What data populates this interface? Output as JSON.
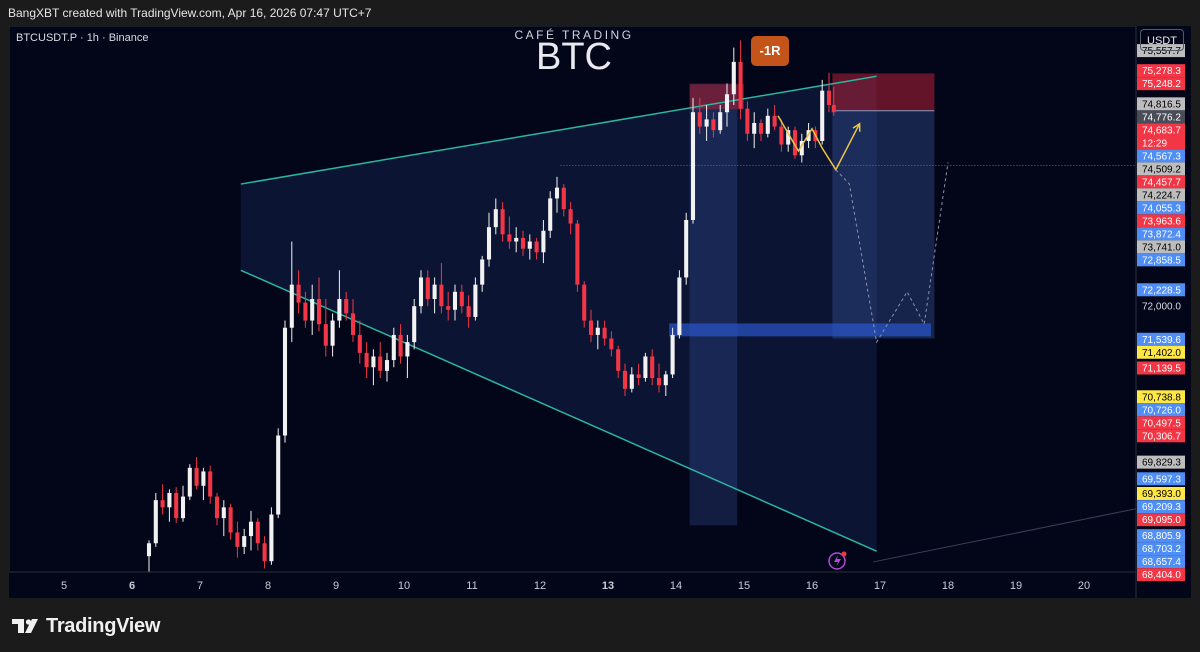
{
  "header": {
    "credit": "BangXBT created with TradingView.com, Apr 16, 2026 07:47 UTC+7"
  },
  "chart": {
    "symbol_line": "BTCUSDT.P · 1h · Binance",
    "brand_small": "CAFÉ TRADING",
    "brand_big": "BTC",
    "badge": "-1R",
    "currency": "USDT"
  },
  "footer": {
    "logo_text": "TradingView"
  },
  "colors": {
    "background": "#030619",
    "up_candle": "#f2f2f2",
    "down_candle": "#f23645",
    "channel": "#2bb5a0",
    "projection": "#e8c547",
    "position_zone": "#3b5ba8",
    "stop_zone": "#b32134",
    "level_red": "#f23645",
    "level_blue": "#4f8ef7",
    "level_yellow": "#ffe745",
    "level_gray": "#bdbdbd"
  },
  "chart_data": {
    "type": "candlestick",
    "symbol": "BTCUSDT.P",
    "interval": "1h",
    "exchange": "Binance",
    "x_ticks": [
      "5",
      "6",
      "7",
      "8",
      "9",
      "10",
      "11",
      "12",
      "13",
      "14",
      "15",
      "16",
      "17",
      "18",
      "19",
      "20"
    ],
    "bold_x_ticks": [
      "6",
      "13"
    ],
    "x_range": [
      4.2,
      20.6
    ],
    "y_range": [
      68300,
      75900
    ],
    "price_axis_labels": [
      {
        "text": "75,557.7",
        "color": "gray"
      },
      {
        "text": "75,278.3",
        "color": "red"
      },
      {
        "text": "75,248.2",
        "color": "red"
      },
      {
        "text": "74,816.5",
        "color": "gray"
      },
      {
        "text": "74,776.2",
        "color": "dark"
      },
      {
        "text": "74,683.7",
        "color": "red",
        "sub": "12:29"
      },
      {
        "text": "74,567.3",
        "color": "blue"
      },
      {
        "text": "74,509.2",
        "color": "gray"
      },
      {
        "text": "74,457.7",
        "color": "red"
      },
      {
        "text": "74,224.7",
        "color": "gray"
      },
      {
        "text": "74,055.3",
        "color": "blue"
      },
      {
        "text": "73,963.6",
        "color": "red"
      },
      {
        "text": "73,872.4",
        "color": "blue"
      },
      {
        "text": "73,741.0",
        "color": "gray"
      },
      {
        "text": "72,858.5",
        "color": "blue"
      },
      {
        "text": "72,228.5",
        "color": "blue"
      },
      {
        "text": "72,000.0",
        "color": "none"
      },
      {
        "text": "71,539.6",
        "color": "blue"
      },
      {
        "text": "71,402.0",
        "color": "yellow"
      },
      {
        "text": "71,139.5",
        "color": "red"
      },
      {
        "text": "70,738.8",
        "color": "yellow"
      },
      {
        "text": "70,726.0",
        "color": "blue"
      },
      {
        "text": "70,497.5",
        "color": "red"
      },
      {
        "text": "70,306.7",
        "color": "red"
      },
      {
        "text": "69,829.3",
        "color": "gray"
      },
      {
        "text": "69,597.3",
        "color": "blue"
      },
      {
        "text": "69,393.0",
        "color": "yellow"
      },
      {
        "text": "69,209.3",
        "color": "blue"
      },
      {
        "text": "69,095.0",
        "color": "red"
      },
      {
        "text": "68,805.9",
        "color": "blue"
      },
      {
        "text": "68,703.2",
        "color": "blue"
      },
      {
        "text": "68,657.4",
        "color": "blue"
      },
      {
        "text": "68,404.0",
        "color": "red"
      }
    ],
    "channel": {
      "upper": [
        [
          7.6,
          73700
        ],
        [
          16.95,
          75200
        ]
      ],
      "lower": [
        [
          7.6,
          72500
        ],
        [
          16.95,
          68590
        ]
      ]
    },
    "channel_fill_start_x": 7.6,
    "short_position": {
      "x": [
        16.3,
        17.8
      ],
      "entry": 74720,
      "stop": 75240,
      "target": 71550
    },
    "demand_zone": {
      "x": [
        13.9,
        17.75
      ],
      "top": 71760,
      "bottom": 71580
    },
    "supply_box": {
      "x": [
        14.2,
        15.0
      ],
      "top": 75090,
      "bottom": 74740
    },
    "vertical_band": {
      "x": [
        14.2,
        14.9
      ],
      "top": 75100,
      "bottom": 68950
    },
    "dotted_level": {
      "x_start": 12.3,
      "price": 73960
    },
    "projection_solid": [
      [
        15.5,
        74650
      ],
      [
        15.8,
        74160
      ],
      [
        16.0,
        74470
      ],
      [
        16.15,
        74200
      ],
      [
        16.35,
        73900
      ],
      [
        16.7,
        74540
      ]
    ],
    "projection_dashed": [
      [
        16.35,
        73900
      ],
      [
        16.55,
        73700
      ],
      [
        16.95,
        71500
      ],
      [
        17.4,
        72200
      ],
      [
        17.65,
        71750
      ],
      [
        18.0,
        74000
      ]
    ],
    "candles": [
      {
        "x": 6.25,
        "o": 68520,
        "h": 68740,
        "l": 68300,
        "c": 68700
      },
      {
        "x": 6.35,
        "o": 68700,
        "h": 69400,
        "l": 68650,
        "c": 69300
      },
      {
        "x": 6.45,
        "o": 69300,
        "h": 69520,
        "l": 69100,
        "c": 69200
      },
      {
        "x": 6.55,
        "o": 69200,
        "h": 69450,
        "l": 69000,
        "c": 69400
      },
      {
        "x": 6.65,
        "o": 69400,
        "h": 69480,
        "l": 68980,
        "c": 69050
      },
      {
        "x": 6.75,
        "o": 69050,
        "h": 69500,
        "l": 69000,
        "c": 69350
      },
      {
        "x": 6.85,
        "o": 69350,
        "h": 69800,
        "l": 69300,
        "c": 69750
      },
      {
        "x": 6.95,
        "o": 69750,
        "h": 69900,
        "l": 69450,
        "c": 69500
      },
      {
        "x": 7.05,
        "o": 69500,
        "h": 69750,
        "l": 69300,
        "c": 69700
      },
      {
        "x": 7.15,
        "o": 69700,
        "h": 69780,
        "l": 69250,
        "c": 69350
      },
      {
        "x": 7.25,
        "o": 69350,
        "h": 69400,
        "l": 68950,
        "c": 69050
      },
      {
        "x": 7.35,
        "o": 69050,
        "h": 69300,
        "l": 68800,
        "c": 69200
      },
      {
        "x": 7.45,
        "o": 69200,
        "h": 69250,
        "l": 68750,
        "c": 68850
      },
      {
        "x": 7.55,
        "o": 68850,
        "h": 69000,
        "l": 68500,
        "c": 68650
      },
      {
        "x": 7.65,
        "o": 68650,
        "h": 68900,
        "l": 68550,
        "c": 68800
      },
      {
        "x": 7.75,
        "o": 68800,
        "h": 69150,
        "l": 68600,
        "c": 69000
      },
      {
        "x": 7.85,
        "o": 69000,
        "h": 69050,
        "l": 68600,
        "c": 68700
      },
      {
        "x": 7.95,
        "o": 68700,
        "h": 68800,
        "l": 68350,
        "c": 68450
      },
      {
        "x": 8.05,
        "o": 68450,
        "h": 69200,
        "l": 68400,
        "c": 69100
      },
      {
        "x": 8.15,
        "o": 69100,
        "h": 70300,
        "l": 69050,
        "c": 70200
      },
      {
        "x": 8.25,
        "o": 70200,
        "h": 71800,
        "l": 70100,
        "c": 71700
      },
      {
        "x": 8.35,
        "o": 71700,
        "h": 72900,
        "l": 71500,
        "c": 72300
      },
      {
        "x": 8.45,
        "o": 72300,
        "h": 72500,
        "l": 71900,
        "c": 72050
      },
      {
        "x": 8.55,
        "o": 72050,
        "h": 72200,
        "l": 71700,
        "c": 71800
      },
      {
        "x": 8.65,
        "o": 71800,
        "h": 72300,
        "l": 71600,
        "c": 72100
      },
      {
        "x": 8.75,
        "o": 72100,
        "h": 72400,
        "l": 71650,
        "c": 71750
      },
      {
        "x": 8.85,
        "o": 71750,
        "h": 72100,
        "l": 71300,
        "c": 71450
      },
      {
        "x": 8.95,
        "o": 71450,
        "h": 71900,
        "l": 71300,
        "c": 71800
      },
      {
        "x": 9.05,
        "o": 71800,
        "h": 72500,
        "l": 71700,
        "c": 72100
      },
      {
        "x": 9.15,
        "o": 72100,
        "h": 72200,
        "l": 71800,
        "c": 71900
      },
      {
        "x": 9.25,
        "o": 71900,
        "h": 72100,
        "l": 71500,
        "c": 71600
      },
      {
        "x": 9.35,
        "o": 71600,
        "h": 71800,
        "l": 71200,
        "c": 71350
      },
      {
        "x": 9.45,
        "o": 71350,
        "h": 71500,
        "l": 71000,
        "c": 71150
      },
      {
        "x": 9.55,
        "o": 71150,
        "h": 71400,
        "l": 70900,
        "c": 71300
      },
      {
        "x": 9.65,
        "o": 71300,
        "h": 71500,
        "l": 71000,
        "c": 71100
      },
      {
        "x": 9.75,
        "o": 71100,
        "h": 71350,
        "l": 70950,
        "c": 71250
      },
      {
        "x": 9.85,
        "o": 71250,
        "h": 71700,
        "l": 71150,
        "c": 71600
      },
      {
        "x": 9.95,
        "o": 71600,
        "h": 71750,
        "l": 71200,
        "c": 71300
      },
      {
        "x": 10.05,
        "o": 71300,
        "h": 71600,
        "l": 71000,
        "c": 71500
      },
      {
        "x": 10.15,
        "o": 71500,
        "h": 72100,
        "l": 71400,
        "c": 72000
      },
      {
        "x": 10.25,
        "o": 72000,
        "h": 72500,
        "l": 71900,
        "c": 72400
      },
      {
        "x": 10.35,
        "o": 72400,
        "h": 72500,
        "l": 72000,
        "c": 72100
      },
      {
        "x": 10.45,
        "o": 72100,
        "h": 72400,
        "l": 71900,
        "c": 72300
      },
      {
        "x": 10.55,
        "o": 72300,
        "h": 72600,
        "l": 71900,
        "c": 72000
      },
      {
        "x": 10.65,
        "o": 72000,
        "h": 72200,
        "l": 71800,
        "c": 71950
      },
      {
        "x": 10.75,
        "o": 71950,
        "h": 72300,
        "l": 71800,
        "c": 72200
      },
      {
        "x": 10.85,
        "o": 72200,
        "h": 72300,
        "l": 71900,
        "c": 72000
      },
      {
        "x": 10.95,
        "o": 72000,
        "h": 72150,
        "l": 71700,
        "c": 71850
      },
      {
        "x": 11.05,
        "o": 71850,
        "h": 72400,
        "l": 71800,
        "c": 72300
      },
      {
        "x": 11.15,
        "o": 72300,
        "h": 72700,
        "l": 72200,
        "c": 72650
      },
      {
        "x": 11.25,
        "o": 72650,
        "h": 73300,
        "l": 72550,
        "c": 73100
      },
      {
        "x": 11.35,
        "o": 73100,
        "h": 73500,
        "l": 73000,
        "c": 73350
      },
      {
        "x": 11.45,
        "o": 73350,
        "h": 73450,
        "l": 72900,
        "c": 73000
      },
      {
        "x": 11.55,
        "o": 73000,
        "h": 73250,
        "l": 72800,
        "c": 72900
      },
      {
        "x": 11.65,
        "o": 72900,
        "h": 73100,
        "l": 72750,
        "c": 72950
      },
      {
        "x": 11.75,
        "o": 72950,
        "h": 73050,
        "l": 72700,
        "c": 72800
      },
      {
        "x": 11.85,
        "o": 72800,
        "h": 73000,
        "l": 72650,
        "c": 72900
      },
      {
        "x": 11.95,
        "o": 72900,
        "h": 72950,
        "l": 72650,
        "c": 72750
      },
      {
        "x": 12.05,
        "o": 72750,
        "h": 73200,
        "l": 72600,
        "c": 73050
      },
      {
        "x": 12.15,
        "o": 73050,
        "h": 73600,
        "l": 72950,
        "c": 73500
      },
      {
        "x": 12.25,
        "o": 73500,
        "h": 73800,
        "l": 73300,
        "c": 73650
      },
      {
        "x": 12.35,
        "o": 73650,
        "h": 73700,
        "l": 73250,
        "c": 73350
      },
      {
        "x": 12.45,
        "o": 73350,
        "h": 73450,
        "l": 73000,
        "c": 73150
      },
      {
        "x": 12.55,
        "o": 73150,
        "h": 73200,
        "l": 72200,
        "c": 72300
      },
      {
        "x": 12.65,
        "o": 72300,
        "h": 72350,
        "l": 71700,
        "c": 71800
      },
      {
        "x": 12.75,
        "o": 71800,
        "h": 71950,
        "l": 71500,
        "c": 71600
      },
      {
        "x": 12.85,
        "o": 71600,
        "h": 71800,
        "l": 71400,
        "c": 71700
      },
      {
        "x": 12.95,
        "o": 71700,
        "h": 71800,
        "l": 71450,
        "c": 71550
      },
      {
        "x": 13.05,
        "o": 71550,
        "h": 71650,
        "l": 71300,
        "c": 71400
      },
      {
        "x": 13.15,
        "o": 71400,
        "h": 71450,
        "l": 71000,
        "c": 71100
      },
      {
        "x": 13.25,
        "o": 71100,
        "h": 71200,
        "l": 70750,
        "c": 70850
      },
      {
        "x": 13.35,
        "o": 70850,
        "h": 71150,
        "l": 70800,
        "c": 71050
      },
      {
        "x": 13.45,
        "o": 71050,
        "h": 71200,
        "l": 70900,
        "c": 71000
      },
      {
        "x": 13.55,
        "o": 71000,
        "h": 71350,
        "l": 70950,
        "c": 71300
      },
      {
        "x": 13.65,
        "o": 71300,
        "h": 71400,
        "l": 70900,
        "c": 71000
      },
      {
        "x": 13.75,
        "o": 71000,
        "h": 71200,
        "l": 70800,
        "c": 70900
      },
      {
        "x": 13.85,
        "o": 70900,
        "h": 71100,
        "l": 70750,
        "c": 71050
      },
      {
        "x": 13.95,
        "o": 71050,
        "h": 71700,
        "l": 71000,
        "c": 71600
      },
      {
        "x": 14.05,
        "o": 71600,
        "h": 72500,
        "l": 71550,
        "c": 72400
      },
      {
        "x": 14.15,
        "o": 72400,
        "h": 73300,
        "l": 72300,
        "c": 73200
      },
      {
        "x": 14.25,
        "o": 73200,
        "h": 74900,
        "l": 73150,
        "c": 74700
      },
      {
        "x": 14.35,
        "o": 74700,
        "h": 74900,
        "l": 74400,
        "c": 74500
      },
      {
        "x": 14.45,
        "o": 74500,
        "h": 74800,
        "l": 74300,
        "c": 74600
      },
      {
        "x": 14.55,
        "o": 74600,
        "h": 74700,
        "l": 74350,
        "c": 74450
      },
      {
        "x": 14.65,
        "o": 74450,
        "h": 74800,
        "l": 74400,
        "c": 74700
      },
      {
        "x": 14.75,
        "o": 74700,
        "h": 75100,
        "l": 74500,
        "c": 74950
      },
      {
        "x": 14.85,
        "o": 74950,
        "h": 75600,
        "l": 74800,
        "c": 75400
      },
      {
        "x": 14.95,
        "o": 75400,
        "h": 75700,
        "l": 74600,
        "c": 74750
      },
      {
        "x": 15.05,
        "o": 74750,
        "h": 74850,
        "l": 74300,
        "c": 74400
      },
      {
        "x": 15.15,
        "o": 74400,
        "h": 74700,
        "l": 74200,
        "c": 74550
      },
      {
        "x": 15.25,
        "o": 74550,
        "h": 74600,
        "l": 74300,
        "c": 74400
      },
      {
        "x": 15.35,
        "o": 74400,
        "h": 74750,
        "l": 74350,
        "c": 74650
      },
      {
        "x": 15.45,
        "o": 74650,
        "h": 74800,
        "l": 74450,
        "c": 74500
      },
      {
        "x": 15.55,
        "o": 74500,
        "h": 74600,
        "l": 74150,
        "c": 74250
      },
      {
        "x": 15.65,
        "o": 74250,
        "h": 74500,
        "l": 74150,
        "c": 74450
      },
      {
        "x": 15.75,
        "o": 74450,
        "h": 74500,
        "l": 74050,
        "c": 74100
      },
      {
        "x": 15.85,
        "o": 74100,
        "h": 74400,
        "l": 74000,
        "c": 74300
      },
      {
        "x": 15.95,
        "o": 74300,
        "h": 74550,
        "l": 74200,
        "c": 74450
      },
      {
        "x": 16.05,
        "o": 74450,
        "h": 74500,
        "l": 74200,
        "c": 74300
      },
      {
        "x": 16.15,
        "o": 74300,
        "h": 75150,
        "l": 74250,
        "c": 75000
      },
      {
        "x": 16.25,
        "o": 75000,
        "h": 75250,
        "l": 74700,
        "c": 74800
      },
      {
        "x": 16.32,
        "o": 74800,
        "h": 75050,
        "l": 74650,
        "c": 74700
      }
    ]
  }
}
